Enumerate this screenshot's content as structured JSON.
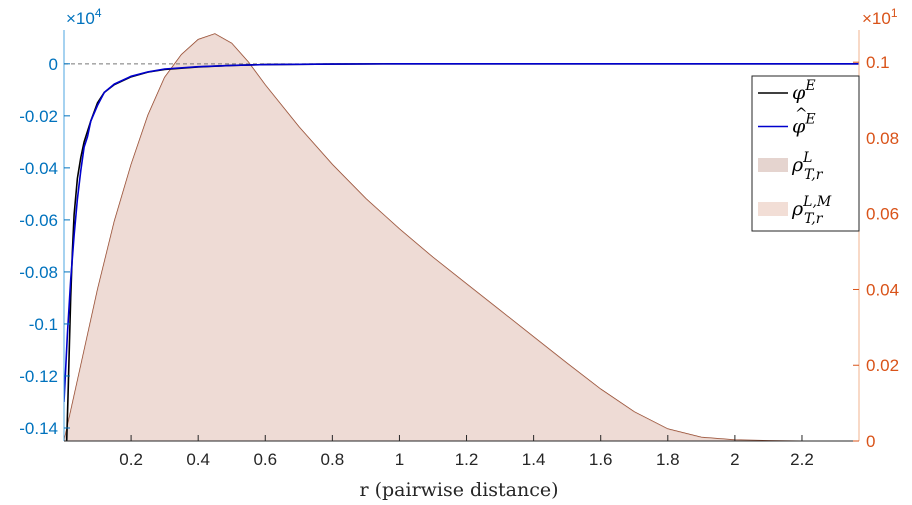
{
  "chart_data": {
    "type": "line",
    "title": "",
    "xlabel": "r (pairwise distance)",
    "xlim": [
      0,
      2.37
    ],
    "x_ticks": [
      0.2,
      0.4,
      0.6,
      0.8,
      1,
      1.2,
      1.4,
      1.6,
      1.8,
      2,
      2.2
    ],
    "x_tick_labels": [
      "0.2",
      "0.4",
      "0.6",
      "0.8",
      "1",
      "1.2",
      "1.4",
      "1.6",
      "1.8",
      "2",
      "2.2"
    ],
    "y_left": {
      "lim": [
        -0.145,
        0.013
      ],
      "exponent_label": "×10",
      "exponent_power": "4",
      "ticks": [
        0,
        -0.02,
        -0.04,
        -0.06,
        -0.08,
        -0.1,
        -0.12,
        -0.14
      ],
      "tick_labels": [
        "0",
        "-0.02",
        "-0.04",
        "-0.06",
        "-0.08",
        "-0.1",
        "-0.12",
        "-0.14"
      ],
      "color": "#0072BD"
    },
    "y_right": {
      "lim": [
        0,
        0.1085
      ],
      "exponent_label": "×10",
      "exponent_power": "1",
      "ticks": [
        0,
        0.02,
        0.04,
        0.06,
        0.08,
        0.1
      ],
      "tick_labels": [
        "0",
        "0.02",
        "0.04",
        "0.06",
        "0.08",
        "0.1"
      ],
      "color": "#D95319"
    },
    "zero_line": {
      "y": 0,
      "style": "dashed"
    },
    "series": [
      {
        "name": "φ^E",
        "kind": "line",
        "axis": "left",
        "color": "#000000",
        "x": [
          0.008,
          0.012,
          0.016,
          0.02,
          0.025,
          0.03,
          0.04,
          0.05,
          0.06,
          0.08,
          0.1,
          0.12,
          0.15,
          0.2,
          0.25,
          0.3,
          0.4,
          0.5,
          0.6,
          0.8,
          1.0,
          1.5,
          2.0,
          2.37
        ],
        "y": [
          -0.145,
          -0.128,
          -0.108,
          -0.09,
          -0.072,
          -0.058,
          -0.044,
          -0.036,
          -0.03,
          -0.022,
          -0.015,
          -0.011,
          -0.008,
          -0.005,
          -0.0032,
          -0.0022,
          -0.0012,
          -0.0006,
          -0.0003,
          -0.0001,
          0,
          0,
          0,
          0
        ]
      },
      {
        "name": "φ̂^E",
        "kind": "line",
        "axis": "left",
        "color": "#0000CD",
        "x": [
          0,
          0.01,
          0.02,
          0.03,
          0.04,
          0.05,
          0.06,
          0.07,
          0.08,
          0.1,
          0.12,
          0.15,
          0.2,
          0.25,
          0.3,
          0.4,
          0.5,
          0.6,
          0.8,
          1.0,
          1.5,
          2.0,
          2.37
        ],
        "y": [
          -0.13,
          -0.104,
          -0.083,
          -0.066,
          -0.052,
          -0.041,
          -0.032,
          -0.028,
          -0.022,
          -0.016,
          -0.011,
          -0.0078,
          -0.0048,
          -0.0031,
          -0.002,
          -0.0011,
          -0.0006,
          -0.0003,
          -0.0001,
          0,
          0,
          0,
          0
        ]
      },
      {
        "name": "ρ^L_{T,r}",
        "kind": "area",
        "axis": "right",
        "color": "#E5D4CF",
        "x": [
          0,
          0.05,
          0.1,
          0.15,
          0.2,
          0.25,
          0.3,
          0.35,
          0.4,
          0.45,
          0.5,
          0.55,
          0.6,
          0.7,
          0.8,
          0.9,
          1.0,
          1.1,
          1.2,
          1.3,
          1.4,
          1.5,
          1.6,
          1.7,
          1.8,
          1.9,
          2.0,
          2.1,
          2.2,
          2.37
        ],
        "y": [
          0,
          0.02,
          0.04,
          0.058,
          0.073,
          0.086,
          0.096,
          0.102,
          0.106,
          0.1075,
          0.105,
          0.1,
          0.094,
          0.083,
          0.073,
          0.064,
          0.056,
          0.0485,
          0.0415,
          0.0345,
          0.0275,
          0.0205,
          0.0137,
          0.0077,
          0.0032,
          0.001,
          0.0003,
          0.0001,
          0,
          0
        ]
      },
      {
        "name": "ρ^{L,M}_{T,r}",
        "kind": "area",
        "axis": "right",
        "color": "#F2DED6",
        "x": [
          0,
          0.05,
          0.1,
          0.15,
          0.2,
          0.25,
          0.3,
          0.35,
          0.4,
          0.45,
          0.5,
          0.55,
          0.6,
          0.7,
          0.8,
          0.9,
          1.0,
          1.1,
          1.2,
          1.3,
          1.4,
          1.5,
          1.6,
          1.7,
          1.8,
          1.9,
          2.0,
          2.1,
          2.2,
          2.37
        ],
        "y": [
          0,
          0.02,
          0.04,
          0.058,
          0.073,
          0.086,
          0.096,
          0.102,
          0.106,
          0.1075,
          0.105,
          0.1,
          0.094,
          0.083,
          0.073,
          0.064,
          0.056,
          0.0485,
          0.0415,
          0.0345,
          0.0275,
          0.0205,
          0.0137,
          0.0077,
          0.0032,
          0.001,
          0.0003,
          0.0001,
          0,
          0
        ]
      }
    ],
    "legend": {
      "position": "top-right",
      "entries": [
        {
          "base": "φ",
          "sup": "E",
          "sub": "",
          "hat": false,
          "swatch": "line",
          "color": "#000000"
        },
        {
          "base": "φ",
          "sup": "E",
          "sub": "",
          "hat": true,
          "swatch": "line",
          "color": "#0000CD"
        },
        {
          "base": "ρ",
          "sup": "L",
          "sub": "T,r",
          "hat": false,
          "swatch": "patch",
          "color": "#E5D4CF"
        },
        {
          "base": "ρ",
          "sup": "L,M",
          "sub": "T,r",
          "hat": false,
          "swatch": "patch",
          "color": "#F2DED6"
        }
      ]
    }
  }
}
